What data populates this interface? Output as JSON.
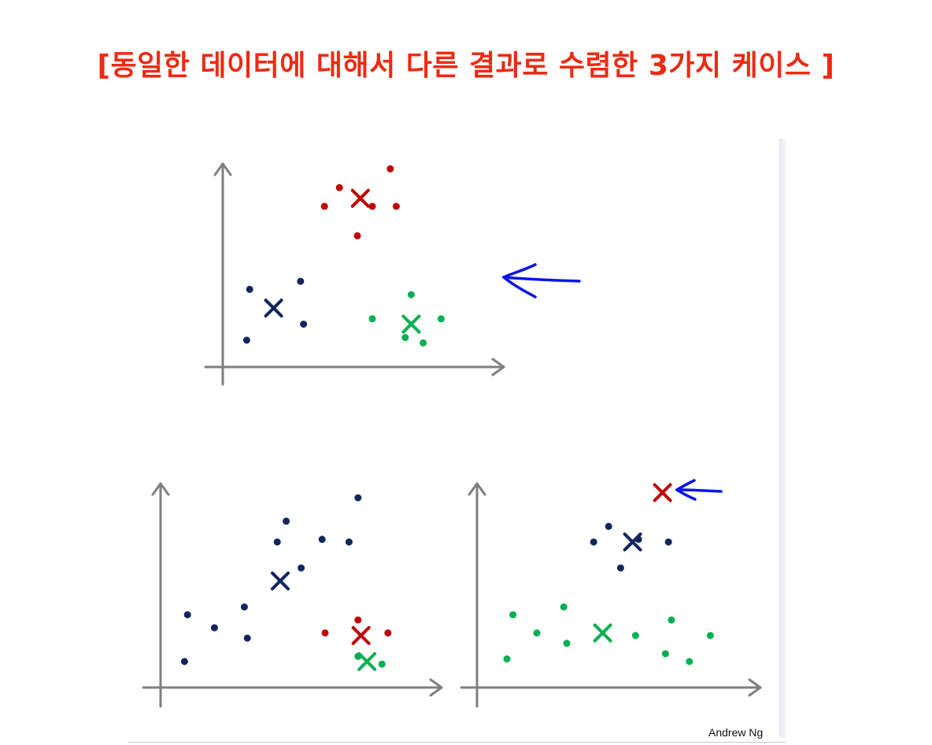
{
  "title": "[동일한 데이터에 대해서 다른 결과로 수렴한 3가지 케이스 ]",
  "credit": "Andrew Ng",
  "colors": {
    "title": "#ee2a12",
    "axis": "#7f7f7f",
    "blue": "#12265e",
    "red": "#c00000",
    "green": "#00b050",
    "arrow": "#0a16e8"
  },
  "icons": {
    "pointer": "hand-drawn-left-arrow-icon",
    "centroid": "cross-x-icon"
  },
  "plots": [
    {
      "id": "top",
      "clusters": [
        {
          "color": "red",
          "centroid": [
            4.6,
            6.3
          ],
          "points": [
            [
              5.6,
              7.4
            ],
            [
              3.9,
              6.7
            ],
            [
              3.4,
              6.0
            ],
            [
              5.0,
              6.0
            ],
            [
              5.8,
              6.0
            ],
            [
              4.5,
              4.9
            ]
          ]
        },
        {
          "color": "blue",
          "centroid": [
            1.7,
            2.2
          ],
          "points": [
            [
              0.9,
              2.9
            ],
            [
              2.6,
              3.2
            ],
            [
              2.7,
              1.6
            ],
            [
              0.8,
              1.0
            ]
          ]
        },
        {
          "color": "green",
          "centroid": [
            6.3,
            1.6
          ],
          "points": [
            [
              6.3,
              2.7
            ],
            [
              5.0,
              1.8
            ],
            [
              7.3,
              1.8
            ],
            [
              6.1,
              1.1
            ],
            [
              6.7,
              0.9
            ]
          ]
        }
      ],
      "pointer_arrow": true
    },
    {
      "id": "bottom-left",
      "clusters": [
        {
          "color": "blue",
          "centroid": [
            4.0,
            4.1
          ],
          "points": [
            [
              6.6,
              7.3
            ],
            [
              4.2,
              6.4
            ],
            [
              3.9,
              5.6
            ],
            [
              5.4,
              5.7
            ],
            [
              6.3,
              5.6
            ],
            [
              4.7,
              4.6
            ],
            [
              0.9,
              2.8
            ],
            [
              2.8,
              3.1
            ],
            [
              1.8,
              2.3
            ],
            [
              2.9,
              1.9
            ],
            [
              0.8,
              1.0
            ]
          ]
        },
        {
          "color": "red",
          "centroid": [
            6.7,
            2.0
          ],
          "points": [
            [
              6.6,
              2.6
            ],
            [
              5.5,
              2.1
            ],
            [
              7.6,
              2.1
            ]
          ]
        },
        {
          "color": "green",
          "centroid": [
            6.9,
            1.0
          ],
          "points": [
            [
              6.6,
              1.2
            ],
            [
              7.4,
              0.9
            ]
          ]
        }
      ]
    },
    {
      "id": "bottom-right",
      "clusters": [
        {
          "color": "red",
          "centroid": [
            6.2,
            7.5
          ],
          "points": []
        },
        {
          "color": "blue",
          "centroid": [
            5.2,
            5.6
          ],
          "points": [
            [
              4.4,
              6.2
            ],
            [
              3.9,
              5.6
            ],
            [
              5.4,
              5.7
            ],
            [
              6.4,
              5.6
            ],
            [
              4.8,
              4.6
            ]
          ]
        },
        {
          "color": "green",
          "centroid": [
            4.2,
            2.1
          ],
          "points": [
            [
              1.2,
              2.8
            ],
            [
              2.9,
              3.1
            ],
            [
              6.5,
              2.6
            ],
            [
              2.0,
              2.1
            ],
            [
              5.3,
              2.0
            ],
            [
              7.8,
              2.0
            ],
            [
              3.0,
              1.7
            ],
            [
              6.3,
              1.3
            ],
            [
              7.1,
              1.0
            ],
            [
              1.0,
              1.1
            ]
          ]
        }
      ],
      "pointer_arrow": true
    }
  ]
}
